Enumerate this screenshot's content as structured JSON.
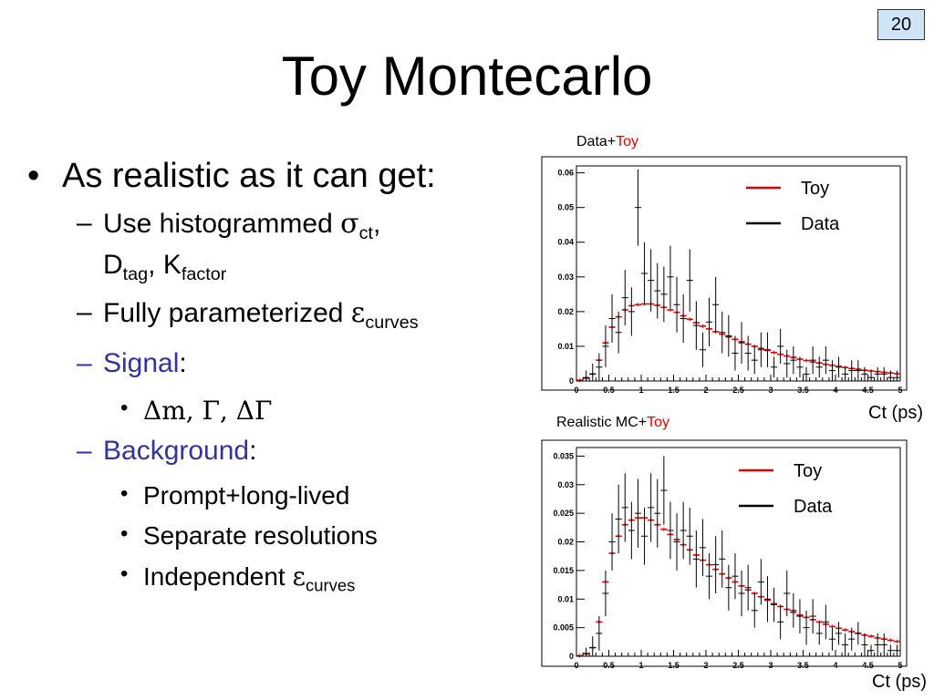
{
  "page_number": "20",
  "title": "Toy Montecarlo",
  "bullets": {
    "main": "As realistic as it can get:",
    "hist": {
      "text": "Use histogrammed ",
      "symbol": "σ",
      "sub": "ct",
      "comma": ",",
      "line2_D": "D",
      "line2_tag": "tag",
      "line2_K": ", K",
      "line2_factor": "factor"
    },
    "param": {
      "text": "Fully parameterized ",
      "symbol": "ε",
      "sub": "curves"
    },
    "signal": {
      "label": "Signal",
      "colon": ":"
    },
    "signal_sub": {
      "text": "Δm, Γ, ΔΓ"
    },
    "background": {
      "label": "Background",
      "colon": ":"
    },
    "bg_items": [
      "Prompt+long-lived",
      "Separate resolutions"
    ],
    "bg_indep": {
      "text": "Independent ",
      "symbol": "ε",
      "sub": "curves"
    }
  },
  "colors": {
    "toy": "#e00000",
    "data": "#000000",
    "accent_blue": "#333399",
    "page_box": "#cfe4f7"
  },
  "chart_data": [
    {
      "type": "scatter",
      "title_parts": [
        {
          "text": "Data+",
          "color": "#000000"
        },
        {
          "text": "Toy",
          "color": "#e00000"
        }
      ],
      "xlabel": "Ct (ps)",
      "ylabel": "",
      "xlim": [
        0,
        5
      ],
      "ylim": [
        0,
        0.062
      ],
      "xticks": [
        0,
        0.5,
        1,
        1.5,
        2,
        2.5,
        3,
        3.5,
        4,
        4.5,
        5
      ],
      "xtick_labels": [
        "0",
        "0.5",
        "1",
        "1.5",
        "2",
        "2.5",
        "3",
        "3.5",
        "4",
        "4.5",
        "5"
      ],
      "yticks": [
        0,
        0.01,
        0.02,
        0.03,
        0.04,
        0.05,
        0.06
      ],
      "ytick_labels": [
        "0",
        "0.01",
        "0.02",
        "0.03",
        "0.04",
        "0.05",
        "0.06"
      ],
      "legend": [
        "Toy",
        "Data"
      ],
      "legend_position": "top-right",
      "series": [
        {
          "name": "Toy",
          "color": "#e00000",
          "x": [
            0.05,
            0.15,
            0.25,
            0.35,
            0.45,
            0.55,
            0.65,
            0.75,
            0.85,
            0.95,
            1.05,
            1.15,
            1.25,
            1.35,
            1.45,
            1.55,
            1.65,
            1.75,
            1.85,
            1.95,
            2.05,
            2.15,
            2.25,
            2.35,
            2.45,
            2.55,
            2.65,
            2.75,
            2.85,
            2.95,
            3.05,
            3.15,
            3.25,
            3.35,
            3.45,
            3.55,
            3.65,
            3.75,
            3.85,
            3.95,
            4.05,
            4.15,
            4.25,
            4.35,
            4.45,
            4.55,
            4.65,
            4.75,
            4.85,
            4.95
          ],
          "y": [
            0.0002,
            0.0008,
            0.002,
            0.006,
            0.011,
            0.0155,
            0.0185,
            0.0205,
            0.0217,
            0.022,
            0.0222,
            0.0222,
            0.0218,
            0.0212,
            0.0205,
            0.0198,
            0.0188,
            0.0178,
            0.0168,
            0.0158,
            0.015,
            0.0142,
            0.0135,
            0.0127,
            0.012,
            0.0113,
            0.0106,
            0.01,
            0.0094,
            0.0088,
            0.0082,
            0.0077,
            0.0072,
            0.0068,
            0.0063,
            0.0059,
            0.0055,
            0.0052,
            0.0048,
            0.0045,
            0.0042,
            0.0039,
            0.0036,
            0.0034,
            0.0031,
            0.0029,
            0.0027,
            0.0025,
            0.0023,
            0.0021
          ]
        },
        {
          "name": "Data",
          "color": "#000000",
          "x": [
            0.05,
            0.15,
            0.25,
            0.35,
            0.45,
            0.55,
            0.65,
            0.75,
            0.85,
            0.95,
            1.05,
            1.15,
            1.25,
            1.35,
            1.45,
            1.55,
            1.65,
            1.75,
            1.85,
            1.95,
            2.05,
            2.15,
            2.25,
            2.35,
            2.45,
            2.55,
            2.65,
            2.75,
            2.85,
            2.95,
            3.05,
            3.15,
            3.25,
            3.35,
            3.45,
            3.55,
            3.65,
            3.75,
            3.85,
            3.95,
            4.05,
            4.15,
            4.25,
            4.35,
            4.45,
            4.55,
            4.65,
            4.75,
            4.85,
            4.95
          ],
          "y": [
            0,
            0.001,
            0.002,
            0.004,
            0.01,
            0.018,
            0.014,
            0.024,
            0.02,
            0.05,
            0.031,
            0.029,
            0.026,
            0.025,
            0.03,
            0.022,
            0.018,
            0.029,
            0.016,
            0.009,
            0.017,
            0.022,
            0.014,
            0.013,
            0.008,
            0.011,
            0.008,
            0.006,
            0.009,
            0.009,
            0.004,
            0.01,
            0.005,
            0.006,
            0.004,
            0.002,
            0.006,
            0.004,
            0.006,
            0.003,
            0.004,
            0.002,
            0.003,
            0.003,
            0.002,
            0.001,
            0.002,
            0.002,
            0.001,
            0.001
          ],
          "err": [
            0,
            0.002,
            0.003,
            0.004,
            0.006,
            0.007,
            0.006,
            0.008,
            0.007,
            0.011,
            0.009,
            0.009,
            0.008,
            0.008,
            0.009,
            0.008,
            0.007,
            0.009,
            0.007,
            0.005,
            0.007,
            0.008,
            0.006,
            0.006,
            0.005,
            0.006,
            0.005,
            0.004,
            0.005,
            0.005,
            0.003,
            0.005,
            0.004,
            0.004,
            0.003,
            0.002,
            0.004,
            0.003,
            0.004,
            0.003,
            0.003,
            0.002,
            0.003,
            0.003,
            0.002,
            0.002,
            0.002,
            0.002,
            0.002,
            0.002
          ]
        }
      ]
    },
    {
      "type": "scatter",
      "title_parts": [
        {
          "text": "Realistic MC+",
          "color": "#000000"
        },
        {
          "text": "Toy",
          "color": "#e00000"
        }
      ],
      "xlabel": "Ct (ps)",
      "ylabel": "",
      "xlim": [
        0,
        5
      ],
      "ylim": [
        0,
        0.0365
      ],
      "xticks": [
        0,
        0.5,
        1,
        1.5,
        2,
        2.5,
        3,
        3.5,
        4,
        4.5,
        5
      ],
      "xtick_labels": [
        "0",
        "0.5",
        "1",
        "1.5",
        "2",
        "2.5",
        "3",
        "3.5",
        "4",
        "4.5",
        "5"
      ],
      "yticks": [
        0,
        0.005,
        0.01,
        0.015,
        0.02,
        0.025,
        0.03,
        0.035
      ],
      "ytick_labels": [
        "0",
        "0.005",
        "0.01",
        "0.015",
        "0.02",
        "0.025",
        "0.03",
        "0.035"
      ],
      "legend": [
        "Toy",
        "Data"
      ],
      "legend_position": "top-right",
      "series": [
        {
          "name": "Toy",
          "color": "#e00000",
          "x": [
            0.05,
            0.15,
            0.25,
            0.35,
            0.45,
            0.55,
            0.65,
            0.75,
            0.85,
            0.95,
            1.05,
            1.15,
            1.25,
            1.35,
            1.45,
            1.55,
            1.65,
            1.75,
            1.85,
            1.95,
            2.05,
            2.15,
            2.25,
            2.35,
            2.45,
            2.55,
            2.65,
            2.75,
            2.85,
            2.95,
            3.05,
            3.15,
            3.25,
            3.35,
            3.45,
            3.55,
            3.65,
            3.75,
            3.85,
            3.95,
            4.05,
            4.15,
            4.25,
            4.35,
            4.45,
            4.55,
            4.65,
            4.75,
            4.85,
            4.95
          ],
          "y": [
            0.0001,
            0.0004,
            0.0015,
            0.006,
            0.013,
            0.018,
            0.021,
            0.023,
            0.0238,
            0.0242,
            0.0242,
            0.0238,
            0.023,
            0.0222,
            0.0213,
            0.0204,
            0.0195,
            0.0186,
            0.0177,
            0.0168,
            0.016,
            0.0152,
            0.0144,
            0.0137,
            0.013,
            0.0123,
            0.0116,
            0.011,
            0.0104,
            0.0098,
            0.0092,
            0.0087,
            0.0082,
            0.0077,
            0.0072,
            0.0068,
            0.0064,
            0.006,
            0.0056,
            0.0052,
            0.0049,
            0.0046,
            0.0043,
            0.004,
            0.0037,
            0.0035,
            0.0032,
            0.003,
            0.0028,
            0.0026
          ]
        },
        {
          "name": "Data",
          "color": "#000000",
          "x": [
            0.05,
            0.15,
            0.25,
            0.35,
            0.45,
            0.55,
            0.65,
            0.75,
            0.85,
            0.95,
            1.05,
            1.15,
            1.25,
            1.35,
            1.45,
            1.55,
            1.65,
            1.75,
            1.85,
            1.95,
            2.05,
            2.15,
            2.25,
            2.35,
            2.45,
            2.55,
            2.65,
            2.75,
            2.85,
            2.95,
            3.05,
            3.15,
            3.25,
            3.35,
            3.45,
            3.55,
            3.65,
            3.75,
            3.85,
            3.95,
            4.05,
            4.15,
            4.25,
            4.35,
            4.45,
            4.55,
            4.65,
            4.75,
            4.85,
            4.95
          ],
          "y": [
            0,
            0.0005,
            0.0015,
            0.004,
            0.011,
            0.02,
            0.024,
            0.026,
            0.022,
            0.025,
            0.021,
            0.026,
            0.025,
            0.029,
            0.022,
            0.02,
            0.022,
            0.021,
            0.017,
            0.019,
            0.014,
            0.016,
            0.017,
            0.012,
            0.014,
            0.011,
            0.012,
            0.008,
            0.013,
            0.01,
            0.009,
            0.006,
            0.011,
            0.008,
            0.007,
            0.005,
            0.007,
            0.004,
            0.006,
            0.003,
            0.004,
            0.002,
            0.003,
            0.004,
            0.002,
            0.001,
            0.002,
            0.002,
            0.001,
            0.001
          ],
          "err": [
            0,
            0.001,
            0.002,
            0.003,
            0.004,
            0.005,
            0.006,
            0.006,
            0.005,
            0.006,
            0.005,
            0.006,
            0.006,
            0.006,
            0.005,
            0.005,
            0.005,
            0.005,
            0.005,
            0.005,
            0.004,
            0.005,
            0.005,
            0.004,
            0.004,
            0.004,
            0.004,
            0.003,
            0.004,
            0.004,
            0.003,
            0.003,
            0.004,
            0.003,
            0.003,
            0.003,
            0.003,
            0.002,
            0.003,
            0.002,
            0.002,
            0.002,
            0.002,
            0.002,
            0.002,
            0.001,
            0.002,
            0.002,
            0.001,
            0.001
          ]
        }
      ]
    }
  ]
}
